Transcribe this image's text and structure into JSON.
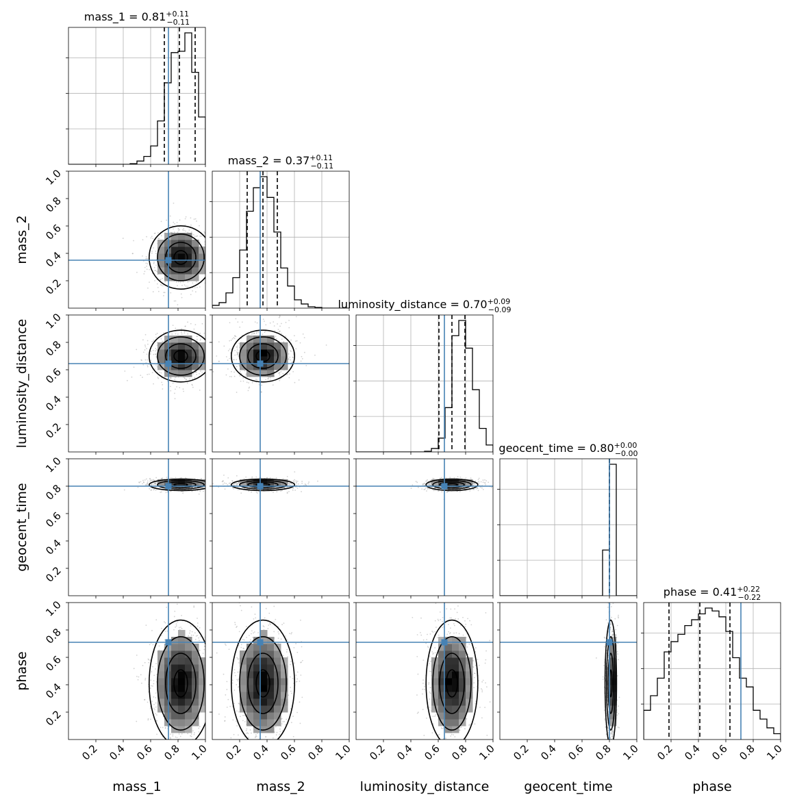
{
  "chart_data": {
    "type": "corner",
    "parameters": [
      "mass_1",
      "mass_2",
      "luminosity_distance",
      "geocent_time",
      "phase"
    ],
    "titles": [
      {
        "parameter": "mass_1",
        "median": "0.81",
        "plus": "+0.11",
        "minus": "−0.11"
      },
      {
        "parameter": "mass_2",
        "median": "0.37",
        "plus": "+0.11",
        "minus": "−0.11"
      },
      {
        "parameter": "luminosity_distance",
        "median": "0.70",
        "plus": "+0.09",
        "minus": "−0.09"
      },
      {
        "parameter": "geocent_time",
        "median": "0.80",
        "plus": "+0.00",
        "minus": "−0.00"
      },
      {
        "parameter": "phase",
        "median": "0.41",
        "plus": "+0.22",
        "minus": "−0.22"
      }
    ],
    "axis_range": [
      0.0,
      1.0
    ],
    "tick_labels": [
      "0.2",
      "0.4",
      "0.6",
      "0.8",
      "1.0"
    ],
    "tick_values": [
      0.2,
      0.4,
      0.6,
      0.8,
      1.0
    ],
    "injected_values": {
      "mass_1": 0.73,
      "mass_2": 0.35,
      "luminosity_distance": 0.645,
      "geocent_time": 0.8,
      "phase": 0.71
    },
    "quantiles": {
      "mass_1": [
        0.7,
        0.81,
        0.925
      ],
      "mass_2": [
        0.255,
        0.37,
        0.475
      ],
      "luminosity_distance": [
        0.605,
        0.7,
        0.795
      ],
      "geocent_time": [
        0.799,
        0.8,
        0.801
      ],
      "phase": [
        0.185,
        0.41,
        0.63
      ]
    },
    "marginal_histograms": {
      "mass_1": {
        "bin_edges": [
          0.0,
          0.05,
          0.1,
          0.15,
          0.2,
          0.25,
          0.3,
          0.35,
          0.4,
          0.45,
          0.5,
          0.55,
          0.6,
          0.65,
          0.7,
          0.75,
          0.8,
          0.85,
          0.9,
          0.95,
          1.0
        ],
        "counts": [
          0,
          0,
          0,
          0,
          0,
          0,
          0,
          0,
          0,
          0.005,
          0.025,
          0.06,
          0.14,
          0.33,
          0.62,
          0.85,
          0.86,
          1.0,
          0.7,
          0.36
        ]
      },
      "mass_2": {
        "bin_edges": [
          0.0,
          0.05,
          0.1,
          0.15,
          0.2,
          0.25,
          0.3,
          0.35,
          0.4,
          0.45,
          0.5,
          0.55,
          0.6,
          0.65,
          0.7,
          0.75,
          0.8,
          0.85,
          0.9,
          0.95,
          1.0
        ],
        "counts": [
          0.02,
          0.04,
          0.11,
          0.22,
          0.42,
          0.7,
          0.87,
          0.95,
          0.8,
          0.55,
          0.29,
          0.16,
          0.06,
          0.03,
          0.01,
          0.005,
          0.0,
          0.0,
          0.0,
          0.0
        ]
      },
      "luminosity_distance": {
        "bin_edges": [
          0.0,
          0.05,
          0.1,
          0.15,
          0.2,
          0.25,
          0.3,
          0.35,
          0.4,
          0.45,
          0.5,
          0.55,
          0.6,
          0.65,
          0.7,
          0.75,
          0.8,
          0.85,
          0.9,
          0.95,
          1.0
        ],
        "counts": [
          0,
          0,
          0,
          0,
          0,
          0,
          0,
          0,
          0,
          0,
          0.005,
          0.025,
          0.1,
          0.32,
          0.84,
          0.95,
          0.75,
          0.45,
          0.17,
          0.05
        ]
      },
      "geocent_time": {
        "bin_edges": [
          0.0,
          0.05,
          0.1,
          0.15,
          0.2,
          0.25,
          0.3,
          0.35,
          0.4,
          0.45,
          0.5,
          0.55,
          0.6,
          0.65,
          0.7,
          0.75,
          0.8,
          0.85,
          0.9,
          0.95,
          1.0
        ],
        "counts": [
          0,
          0,
          0,
          0,
          0,
          0,
          0,
          0,
          0,
          0,
          0,
          0,
          0,
          0,
          0,
          0.32,
          0.92,
          0,
          0,
          0
        ]
      },
      "phase": {
        "bin_edges": [
          0.0,
          0.05,
          0.1,
          0.15,
          0.2,
          0.25,
          0.3,
          0.35,
          0.4,
          0.45,
          0.5,
          0.55,
          0.6,
          0.65,
          0.7,
          0.75,
          0.8,
          0.85,
          0.9,
          0.95,
          1.0
        ],
        "counts": [
          0.2,
          0.3,
          0.42,
          0.6,
          0.67,
          0.72,
          0.78,
          0.82,
          0.86,
          0.9,
          0.88,
          0.84,
          0.74,
          0.56,
          0.42,
          0.36,
          0.2,
          0.14,
          0.08,
          0.04
        ]
      }
    },
    "posterior_means": {
      "mass_1": 0.82,
      "mass_2": 0.37,
      "luminosity_distance": 0.7,
      "geocent_time": 0.81,
      "phase": 0.41
    },
    "posterior_sigmas": {
      "mass_1": 0.11,
      "mass_2": 0.11,
      "luminosity_distance": 0.09,
      "geocent_time": 0.02,
      "phase": 0.22
    },
    "truth_color": "#4682b4",
    "grid": true
  }
}
